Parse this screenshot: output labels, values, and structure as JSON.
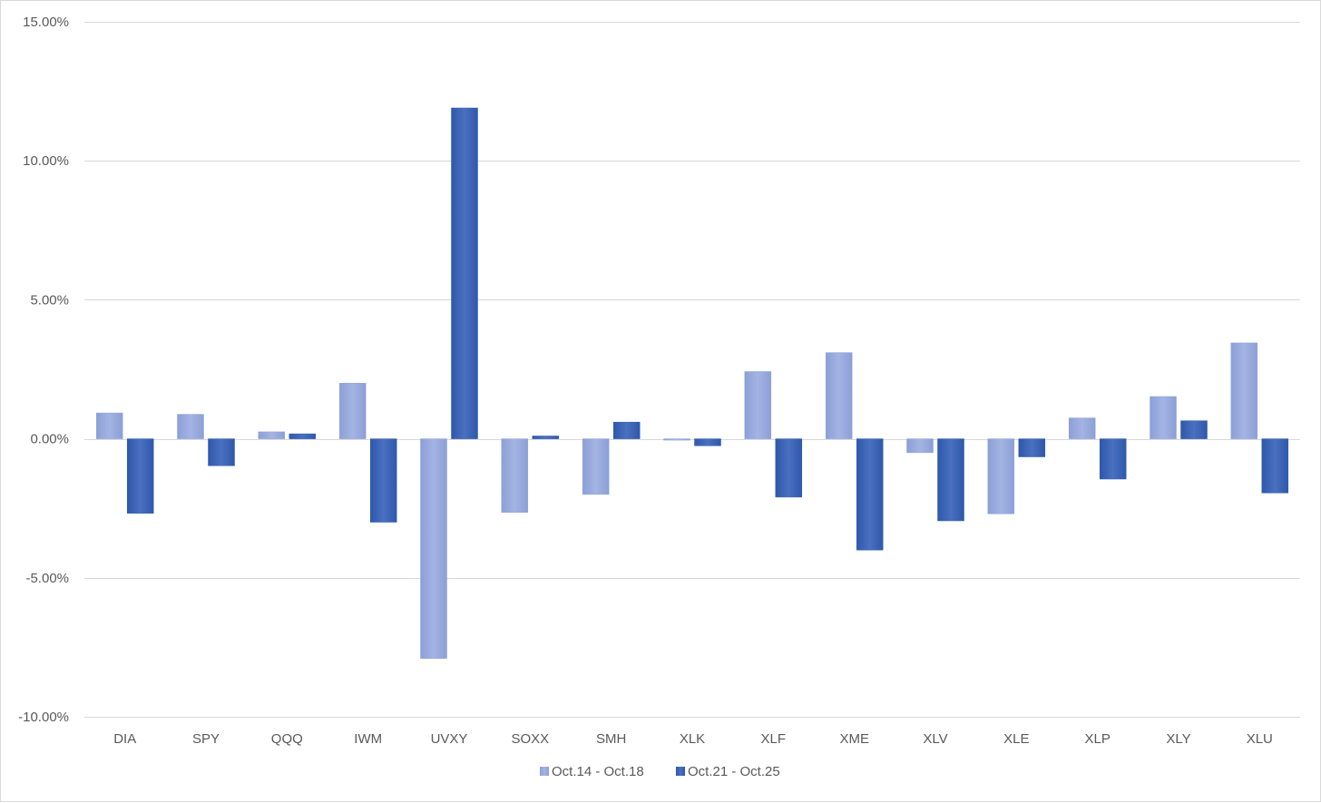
{
  "chart_data": {
    "type": "bar",
    "title": "",
    "xlabel": "",
    "ylabel": "",
    "categories": [
      "DIA",
      "SPY",
      "QQQ",
      "IWM",
      "UVXY",
      "SOXX",
      "SMH",
      "XLK",
      "XLF",
      "XME",
      "XLV",
      "XLE",
      "XLP",
      "XLY",
      "XLU"
    ],
    "series": [
      {
        "name": "Oct.14 - Oct.18",
        "color": "#8FA3DA",
        "values": [
          0.93,
          0.88,
          0.25,
          2.0,
          -7.9,
          -2.65,
          -2.0,
          -0.05,
          2.42,
          3.1,
          -0.5,
          -2.7,
          0.75,
          1.52,
          3.45
        ]
      },
      {
        "name": "Oct.21 - Oct.25",
        "color": "#2F5AAE",
        "values": [
          -2.68,
          -0.97,
          0.18,
          -3.0,
          11.9,
          0.1,
          0.6,
          -0.25,
          -2.1,
          -4.0,
          -2.95,
          -0.65,
          -1.45,
          0.65,
          -1.95
        ]
      }
    ],
    "ylim": [
      -10,
      15
    ],
    "yticks": [
      "15.00%",
      "10.00%",
      "5.00%",
      "0.00%",
      "-5.00%",
      "-10.00%"
    ],
    "ytick_values": [
      15,
      10,
      5,
      0,
      -5,
      -10
    ],
    "grid": true,
    "legend_position": "bottom"
  }
}
